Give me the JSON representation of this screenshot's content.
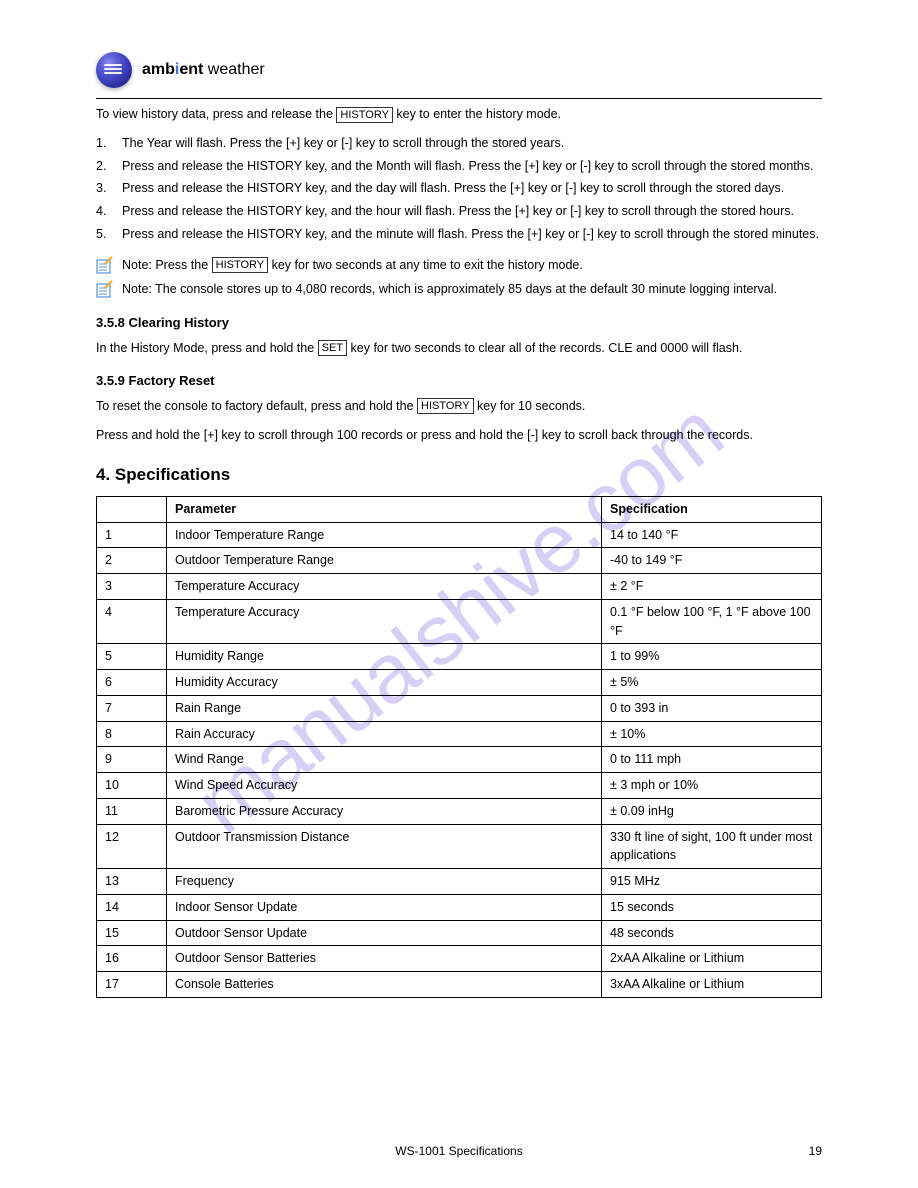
{
  "brand": {
    "bold": "amb",
    "i": "i",
    "bold2": "ent",
    "light": " weather"
  },
  "watermark": "manualshive.com",
  "intro": {
    "line1_pre": "To view history data, press and release the ",
    "line1_key": "HISTORY",
    "line1_post": " key to enter the history mode."
  },
  "steps": [
    {
      "n": "1.",
      "t": "The Year will flash.  Press the [+] key or [-] key to scroll through the stored years."
    },
    {
      "n": "2.",
      "t": "Press and release the HISTORY key, and the Month will flash.  Press the [+] key or [-] key to scroll through the stored months."
    },
    {
      "n": "3.",
      "t": "Press and release the HISTORY key, and the day will flash.  Press the [+] key or [-] key to scroll through the stored days."
    },
    {
      "n": "4.",
      "t": "Press and release the HISTORY key, and the hour will flash.  Press the [+] key or [-] key to scroll through the stored hours."
    },
    {
      "n": "5.",
      "t": "Press and release the HISTORY key, and the minute will flash.  Press the [+] key or [-] key to scroll through the stored minutes."
    }
  ],
  "note1_pre": "Note:  Press the ",
  "note1_key": "HISTORY",
  "note1_post": " key for two seconds at any time to exit the history mode.",
  "note2": "Note:  The console stores up to 4,080 records, which is approximately 85 days at the default 30 minute logging interval.",
  "section_clear": {
    "title": "3.5.8 Clearing History",
    "p1_pre": "In the History Mode, press and hold the ",
    "p1_key": "SET",
    "p1_post": " key for two seconds to clear all of the records.  CLE and 0000 will flash."
  },
  "section_factory": {
    "title": "3.5.9 Factory Reset",
    "p1_pre": "To reset the console to factory default, press and hold the ",
    "p1_key": "HISTORY",
    "p1_post": " key for 10 seconds.",
    "p2": "Press and hold the [+] key to scroll through 100 records or press and hold the [-] key to scroll back through the records."
  },
  "spec_title": "4.  Specifications",
  "table": {
    "headers": [
      "",
      "Parameter",
      "Specification"
    ],
    "rows": [
      [
        "1",
        "Indoor Temperature Range",
        "14 to 140 °F"
      ],
      [
        "2",
        "Outdoor Temperature Range",
        "-40 to 149 °F"
      ],
      [
        "3",
        "Temperature Accuracy",
        "± 2 °F"
      ],
      [
        "4",
        "Temperature Accuracy",
        "0.1 °F below 100 °F, 1 °F above 100 °F"
      ],
      [
        "5",
        "Humidity Range",
        "1 to 99%"
      ],
      [
        "6",
        "Humidity Accuracy",
        "± 5%"
      ],
      [
        "7",
        "Rain Range",
        "0 to 393 in"
      ],
      [
        "8",
        "Rain Accuracy",
        "± 10%"
      ],
      [
        "9",
        "Wind Range",
        "0 to 111 mph"
      ],
      [
        "10",
        "Wind Speed Accuracy",
        "± 3 mph or 10%"
      ],
      [
        "11",
        "Barometric Pressure Accuracy",
        "± 0.09 inHg"
      ],
      [
        "12",
        "Outdoor Transmission Distance",
        "330 ft line of sight, 100 ft under most applications"
      ],
      [
        "13",
        "Frequency",
        "915 MHz"
      ],
      [
        "14",
        "Indoor Sensor Update",
        "15 seconds"
      ],
      [
        "15",
        "Outdoor Sensor Update",
        "48 seconds"
      ],
      [
        "16",
        "Outdoor Sensor Batteries",
        "2xAA Alkaline or Lithium"
      ],
      [
        "17",
        "Console Batteries",
        "3xAA Alkaline or Lithium"
      ]
    ]
  },
  "footer": {
    "label": "WS-1001 Specifications",
    "page": "19"
  }
}
